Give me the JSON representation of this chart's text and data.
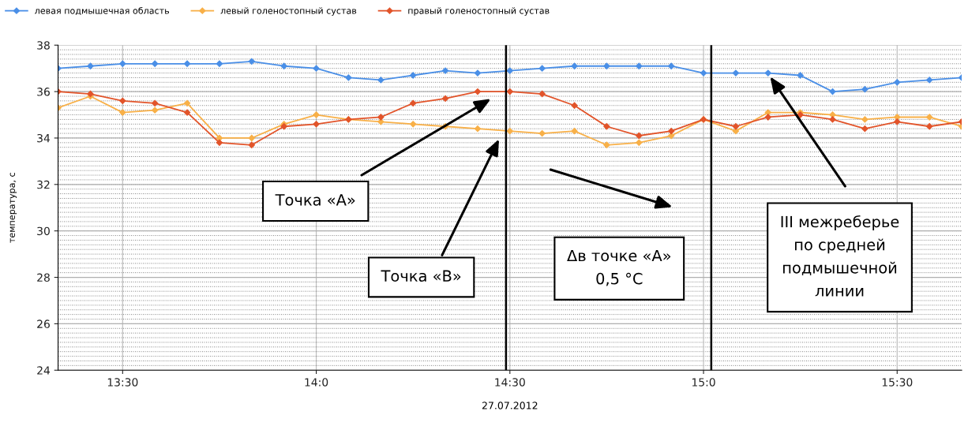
{
  "chart_data": {
    "type": "line",
    "xlabel": "27.07.2012",
    "ylabel": "температура, с",
    "x": [
      13.3333,
      13.4167,
      13.5,
      13.5833,
      13.6667,
      13.75,
      13.8333,
      13.9167,
      14.0,
      14.0833,
      14.1667,
      14.25,
      14.3333,
      14.4167,
      14.5,
      14.5833,
      14.6667,
      14.75,
      14.8333,
      14.9167,
      15.0,
      15.0833,
      15.1667,
      15.25,
      15.3333,
      15.4167,
      15.5,
      15.5833,
      15.6667
    ],
    "series": [
      {
        "name": "левая подмышечная область",
        "color": "#4a8fe7",
        "values": [
          37.0,
          37.1,
          37.2,
          37.2,
          37.2,
          37.2,
          37.3,
          37.1,
          37.0,
          36.6,
          36.5,
          36.7,
          36.9,
          36.8,
          36.9,
          37.0,
          37.1,
          37.1,
          37.1,
          37.1,
          36.8,
          36.8,
          36.8,
          36.7,
          36.0,
          36.1,
          36.4,
          36.5,
          36.6
        ]
      },
      {
        "name": "левый голеностопный сустав",
        "color": "#f8b048",
        "values": [
          35.3,
          35.8,
          35.1,
          35.2,
          35.5,
          34.0,
          34.0,
          34.6,
          35.0,
          34.8,
          34.7,
          34.6,
          34.5,
          34.4,
          34.3,
          34.2,
          34.3,
          33.7,
          33.8,
          34.1,
          34.8,
          34.3,
          35.1,
          35.1,
          35.0,
          34.8,
          34.9,
          34.9,
          34.5
        ]
      },
      {
        "name": "правый голеностопный сустав",
        "color": "#e2542a",
        "values": [
          36.0,
          35.9,
          35.6,
          35.5,
          35.1,
          33.8,
          33.7,
          34.5,
          34.6,
          34.8,
          34.9,
          35.5,
          35.7,
          36.0,
          36.0,
          35.9,
          35.4,
          34.5,
          34.1,
          34.3,
          34.8,
          34.5,
          34.9,
          35.0,
          34.8,
          34.4,
          34.7,
          34.5,
          34.7
        ]
      }
    ],
    "xlim": [
      13.3333,
      15.6667
    ],
    "xticks": [
      {
        "value": 13.5,
        "label": "13:30"
      },
      {
        "value": 14.0,
        "label": "14:0"
      },
      {
        "value": 14.5,
        "label": "14:30"
      },
      {
        "value": 15.0,
        "label": "15:0"
      },
      {
        "value": 15.5,
        "label": "15:30"
      }
    ],
    "ylim": [
      24,
      38
    ],
    "yticks": [
      24,
      26,
      28,
      30,
      32,
      34,
      36,
      38
    ],
    "ref_lines": [
      {
        "axis": "x",
        "value": 14.49,
        "color": "#000000"
      },
      {
        "axis": "x",
        "value": 15.02,
        "color": "#000000"
      }
    ],
    "annotations": [
      "Точка «А»",
      "Точка «В»",
      "Δв точке «А»\n0,5 °C",
      "III межреберье\nпо средней\nподмышечной\nлинии"
    ],
    "grid": true,
    "legend": "top left",
    "marker": "diamond",
    "line_style": "solid"
  }
}
